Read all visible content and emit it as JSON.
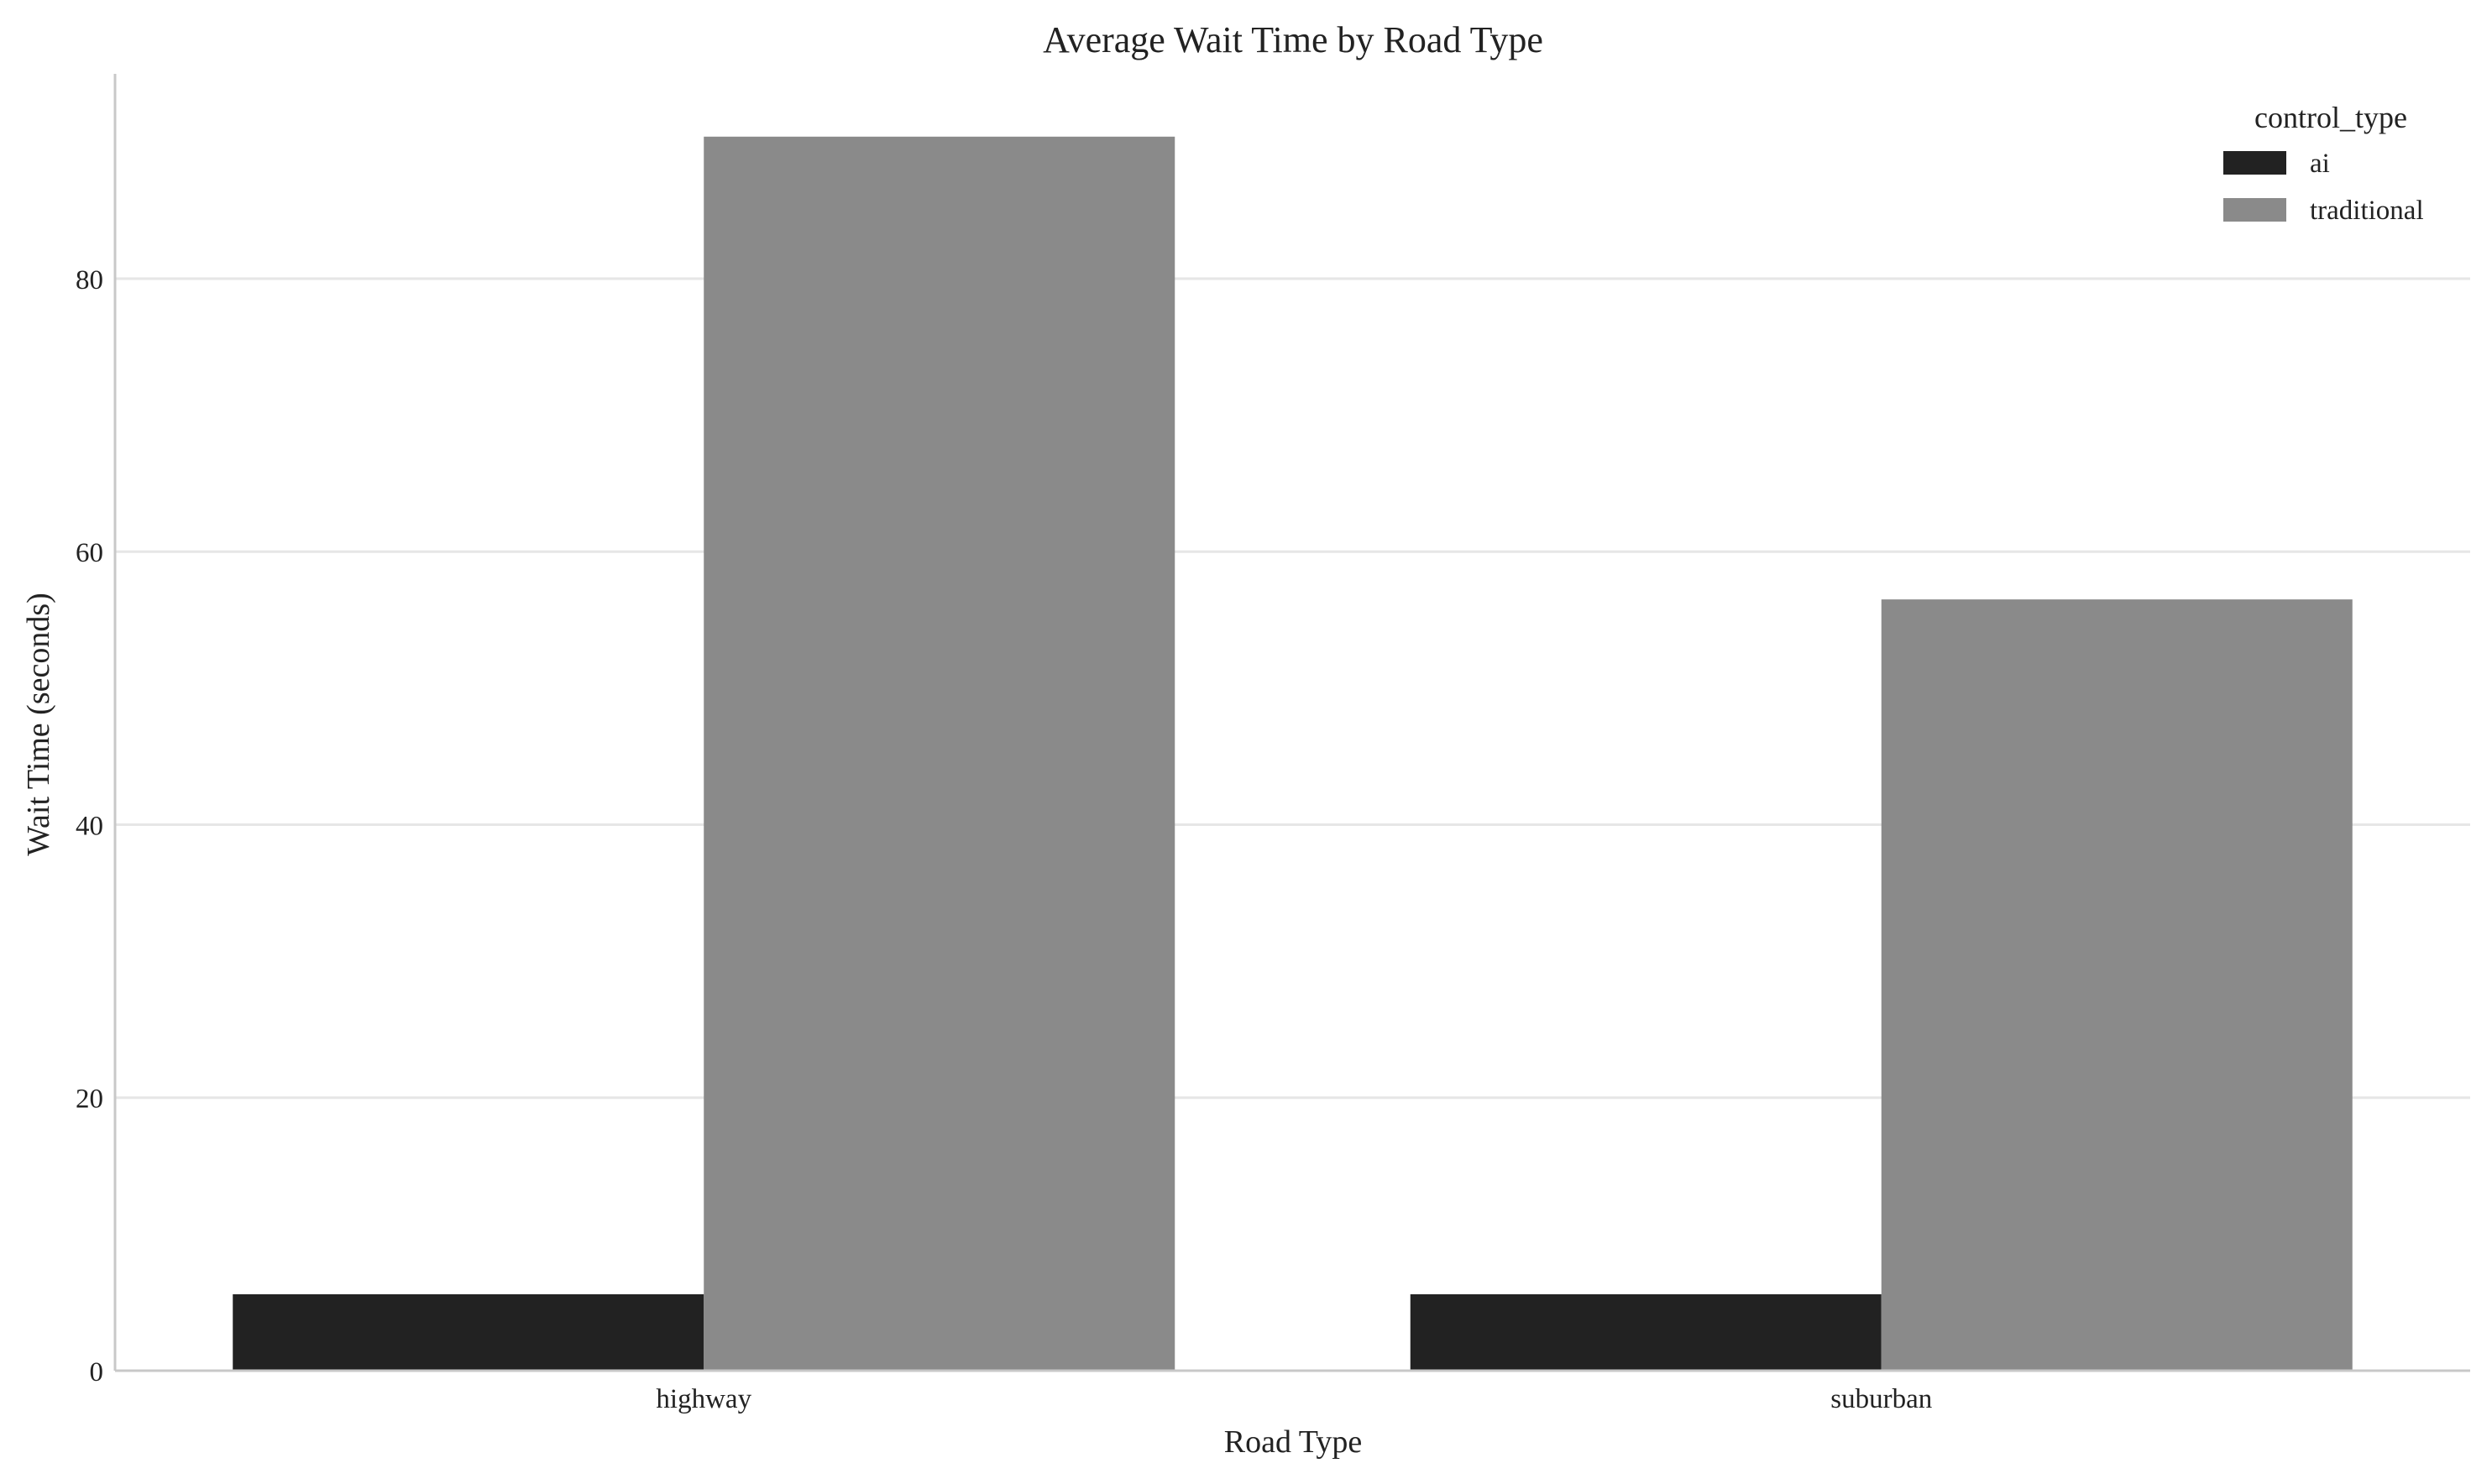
{
  "chart_data": {
    "type": "bar",
    "title": "Average Wait Time by Road Type",
    "xlabel": "Road Type",
    "ylabel": "Wait Time (seconds)",
    "categories": [
      "highway",
      "suburban"
    ],
    "series": [
      {
        "name": "ai",
        "values": [
          5.6,
          5.6
        ],
        "color": "#222222"
      },
      {
        "name": "traditional",
        "values": [
          90.4,
          56.5
        ],
        "color": "#8a8a8a"
      }
    ],
    "ylim": [
      0,
      95
    ],
    "yticks": [
      0,
      20,
      40,
      60,
      80
    ],
    "grid": "horizontal",
    "legend": {
      "title": "control_type",
      "placement": "top-right"
    }
  }
}
